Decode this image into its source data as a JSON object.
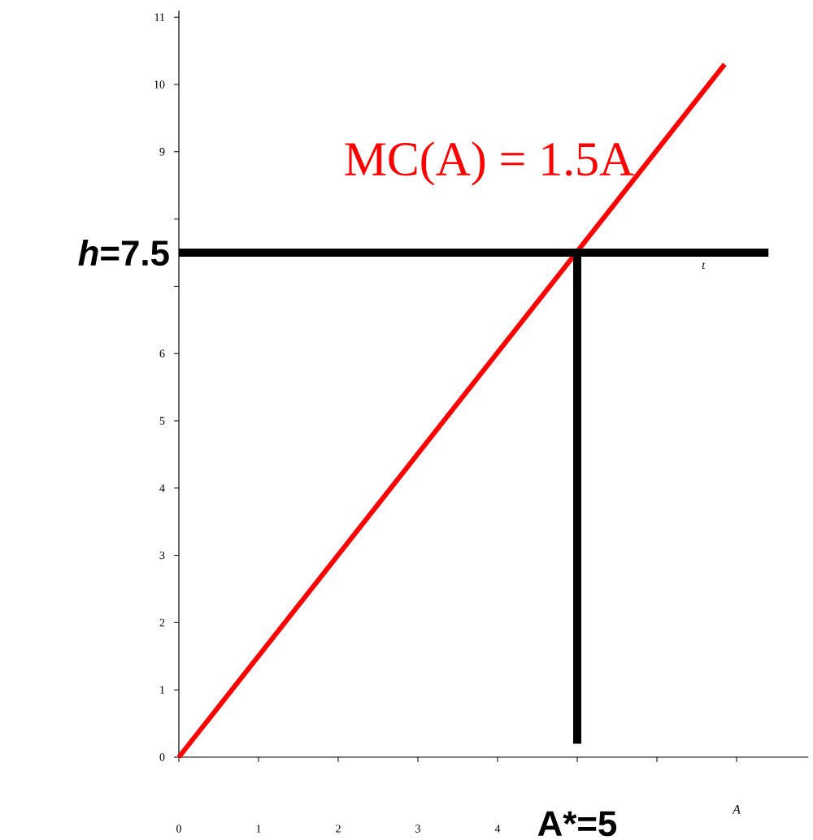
{
  "chart_data": {
    "type": "line",
    "xlabel": "A",
    "xlim": [
      0,
      7.9
    ],
    "ylim": [
      0,
      11.1
    ],
    "xticks": [
      0,
      1,
      2,
      3,
      4,
      {
        "value": 5,
        "label": null
      },
      {
        "value": 6,
        "label": null
      },
      {
        "value": 7,
        "label": null
      }
    ],
    "yticks": [
      0,
      1,
      2,
      3,
      4,
      5,
      6,
      {
        "value": 7,
        "label": null
      },
      {
        "value": 8,
        "label": null
      },
      9,
      10,
      11
    ],
    "series": [
      {
        "name": "MC(A) = 1.5A",
        "color": "#ff0000",
        "x": [
          0,
          6.85
        ],
        "values": [
          0,
          10.3
        ]
      },
      {
        "color": "#000000",
        "x": [
          0,
          7.4
        ],
        "values": [
          7.5,
          7.5
        ]
      },
      {
        "color": "#000000",
        "x": [
          5,
          5
        ],
        "values": [
          0.2,
          7.5
        ]
      }
    ],
    "annotations": [
      "t",
      "A*=5",
      "*h*=7.5"
    ],
    "grid": false,
    "marker": "none",
    "line_style": "solid"
  }
}
